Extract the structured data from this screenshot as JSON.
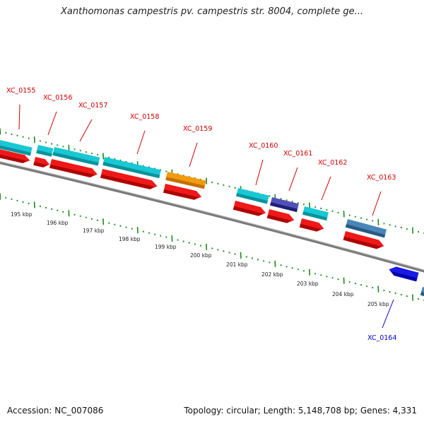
{
  "header": {
    "title": "Xanthomonas campestris pv. campestris str. 8004, complete ge..."
  },
  "footer": {
    "accession": "Accession: NC_007086",
    "summary": "Topology: circular; Length: 5,148,708 bp; Genes: 4,331"
  },
  "colors": {
    "forward_label": "#cc0000",
    "reverse_label": "#0000cc",
    "tick": "#1a8a1a",
    "backbone": "#7a7a7a"
  },
  "genes": [
    {
      "id": "XC_0155",
      "strand": "forward"
    },
    {
      "id": "XC_0156",
      "strand": "forward"
    },
    {
      "id": "XC_0157",
      "strand": "forward"
    },
    {
      "id": "XC_0158",
      "strand": "forward"
    },
    {
      "id": "XC_0159",
      "strand": "forward"
    },
    {
      "id": "XC_0160",
      "strand": "forward"
    },
    {
      "id": "XC_0161",
      "strand": "forward"
    },
    {
      "id": "XC_0162",
      "strand": "forward"
    },
    {
      "id": "XC_0163",
      "strand": "forward"
    },
    {
      "id": "XC_0164",
      "strand": "reverse"
    }
  ],
  "scale_labels": [
    "195 kbp",
    "196 kbp",
    "197 kbp",
    "198 kbp",
    "199 kbp",
    "200 kbp",
    "201 kbp",
    "202 kbp",
    "203 kbp",
    "204 kbp",
    "205 kbp"
  ]
}
